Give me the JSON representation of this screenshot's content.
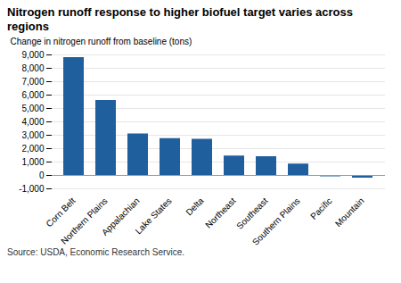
{
  "chart_data": {
    "type": "bar",
    "title": "Nitrogen runoff response to higher biofuel target varies across regions",
    "ylabel": "Change in nitrogen runoff from baseline (tons)",
    "source": "Source:  USDA, Economic Research Service.",
    "categories": [
      "Corn Belt",
      "Northern Plains",
      "Appalachian",
      "Lake States",
      "Delta",
      "Northeast",
      "Southeast",
      "Southern Plains",
      "Pacific",
      "Mountain"
    ],
    "values": [
      8800,
      5600,
      3100,
      2750,
      2700,
      1450,
      1400,
      850,
      -100,
      -200
    ],
    "color": "#1F5F9E",
    "ylim": [
      -1000,
      9000
    ],
    "yticks": [
      {
        "value": -1000,
        "label": "-1,000"
      },
      0,
      {
        "value": 1000,
        "label": "1,000"
      },
      {
        "value": 2000,
        "label": "2,000"
      },
      {
        "value": 3000,
        "label": "3,000"
      },
      {
        "value": 4000,
        "label": "4,000"
      },
      {
        "value": 5000,
        "label": "5,000"
      },
      {
        "value": 6000,
        "label": "6,000"
      },
      {
        "value": 7000,
        "label": "7,000"
      },
      {
        "value": 8000,
        "label": "8,000"
      },
      {
        "value": 9000,
        "label": "9,000"
      }
    ],
    "grid": true
  }
}
